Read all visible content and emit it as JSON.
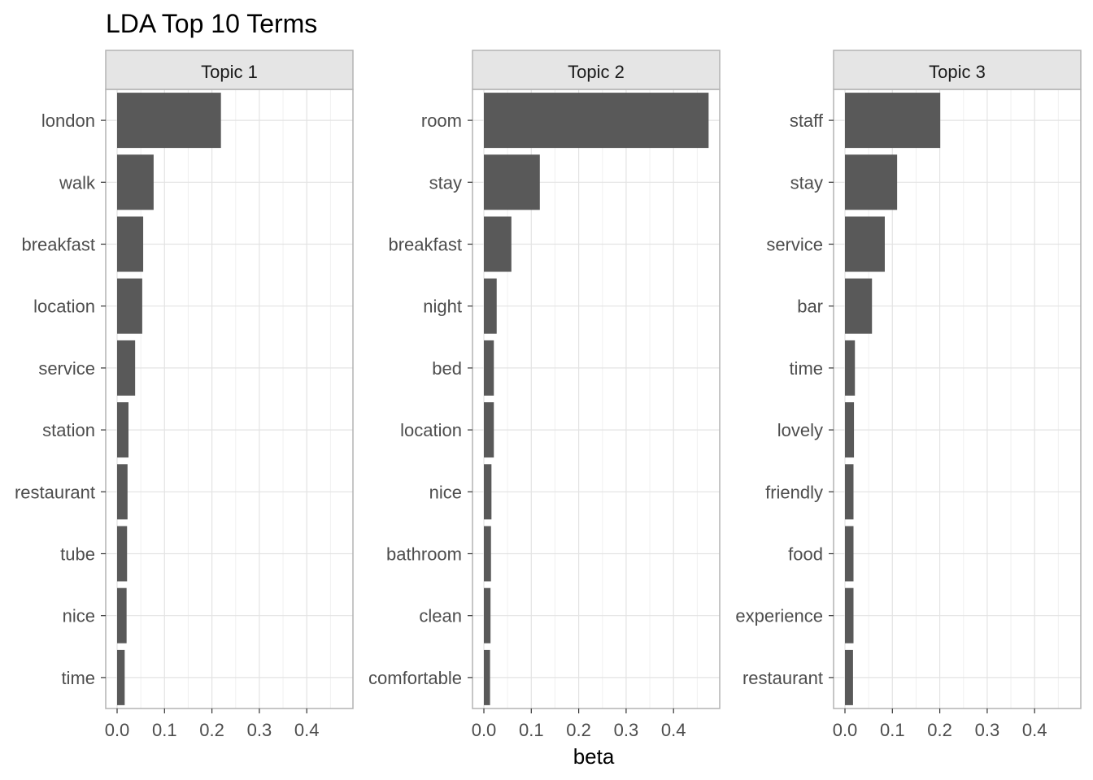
{
  "chart_data": {
    "type": "bar",
    "orientation": "horizontal",
    "title": "LDA Top 10 Terms",
    "xlabel": "beta",
    "ylabel": "",
    "xlim": [
      0,
      0.49
    ],
    "x_ticks": [
      "0.0",
      "0.1",
      "0.2",
      "0.3",
      "0.4"
    ],
    "grid": true,
    "legend": "none",
    "bar_color": "#595959",
    "panels": [
      {
        "name": "Topic 1",
        "categories": [
          "london",
          "walk",
          "breakfast",
          "location",
          "service",
          "station",
          "restaurant",
          "tube",
          "nice",
          "time"
        ],
        "values": [
          0.219,
          0.077,
          0.055,
          0.053,
          0.038,
          0.024,
          0.022,
          0.021,
          0.02,
          0.016
        ]
      },
      {
        "name": "Topic 2",
        "categories": [
          "room",
          "stay",
          "breakfast",
          "night",
          "bed",
          "location",
          "nice",
          "bathroom",
          "clean",
          "comfortable"
        ],
        "values": [
          0.474,
          0.118,
          0.058,
          0.027,
          0.021,
          0.021,
          0.016,
          0.015,
          0.014,
          0.013
        ]
      },
      {
        "name": "Topic 3",
        "categories": [
          "staff",
          "stay",
          "service",
          "bar",
          "time",
          "lovely",
          "friendly",
          "food",
          "experience",
          "restaurant"
        ],
        "values": [
          0.201,
          0.11,
          0.084,
          0.057,
          0.021,
          0.019,
          0.018,
          0.018,
          0.018,
          0.017
        ]
      }
    ]
  }
}
